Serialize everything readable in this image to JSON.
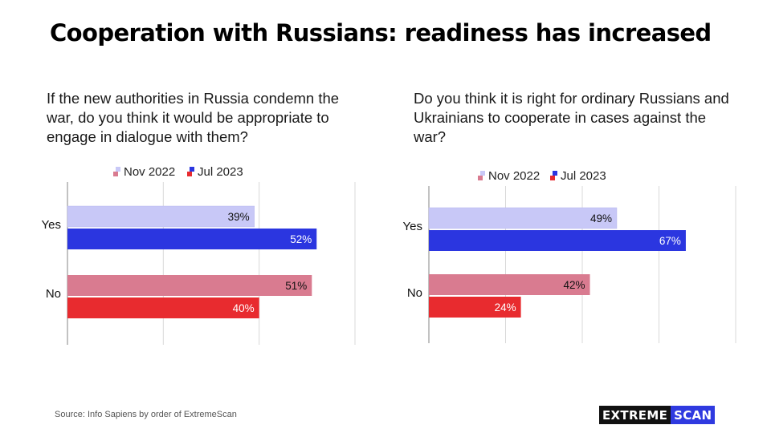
{
  "title": "Cooperation with Russians: readiness has increased",
  "source": "Source: Info Sapiens by order of ExtremeScan",
  "logo": {
    "part1": "EXTREME",
    "part2": "SCAN"
  },
  "colors": {
    "nov_yes": "#c8c8f7",
    "jul_yes": "#2b36e0",
    "nov_no": "#d97b90",
    "jul_no": "#e82b2f"
  },
  "chart_data": [
    {
      "type": "bar",
      "orientation": "horizontal",
      "title": "If the new authorities in Russia condemn the war, do you think it would be appropriate to engage in dialogue with them?",
      "categories": [
        "Yes",
        "No"
      ],
      "legend": [
        "Nov 2022",
        "Jul 2023"
      ],
      "legend_position": "top",
      "series": [
        {
          "name": "Nov 2022",
          "values": [
            39,
            51
          ],
          "labels": [
            "39%",
            "51%"
          ]
        },
        {
          "name": "Jul 2023",
          "values": [
            52,
            40
          ],
          "labels": [
            "52%",
            "40%"
          ]
        }
      ],
      "xlim": [
        0,
        60
      ],
      "grid": true
    },
    {
      "type": "bar",
      "orientation": "horizontal",
      "title": "Do you think it is right for ordinary Russians and Ukrainians to cooperate in cases against the war?",
      "categories": [
        "Yes",
        "No"
      ],
      "legend": [
        "Nov 2022",
        "Jul 2023"
      ],
      "legend_position": "top",
      "series": [
        {
          "name": "Nov 2022",
          "values": [
            49,
            42
          ],
          "labels": [
            "49%",
            "42%"
          ]
        },
        {
          "name": "Jul 2023",
          "values": [
            67,
            24
          ],
          "labels": [
            "67%",
            "24%"
          ]
        }
      ],
      "xlim": [
        0,
        80
      ],
      "grid": true
    }
  ]
}
